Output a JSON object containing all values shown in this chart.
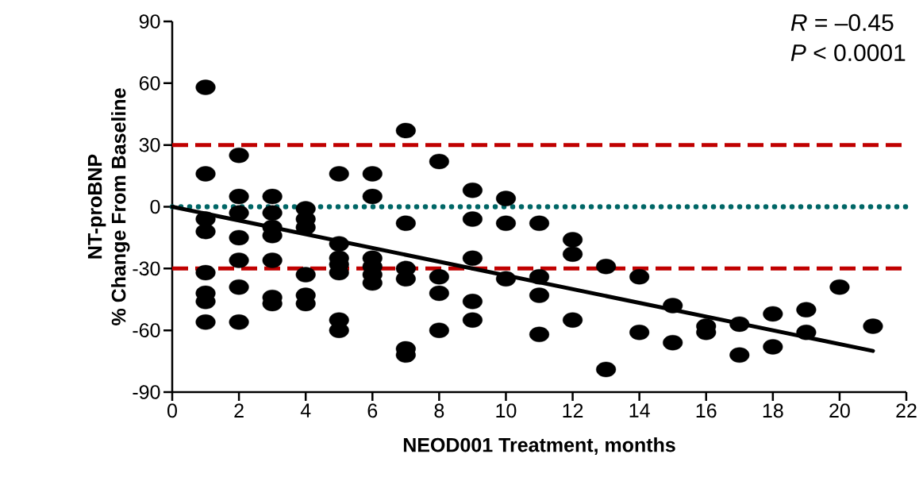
{
  "chart_data": {
    "type": "scatter",
    "xlabel": "NEOD001 Treatment, months",
    "ylabel": "NT-proBNP % Change From Baseline",
    "annotations": [
      "*R* = –0.45",
      "*P* < 0.0001"
    ],
    "xlim": [
      0,
      22
    ],
    "ylim": [
      -90,
      90
    ],
    "xticks": [
      0,
      2,
      4,
      6,
      8,
      10,
      12,
      14,
      16,
      18,
      20,
      22
    ],
    "yticks": [
      -90,
      -60,
      -30,
      0,
      30,
      60,
      90
    ],
    "marker": "circle",
    "series": [
      {
        "color": "#000000",
        "x": [
          1,
          1,
          1,
          1,
          1,
          1,
          1,
          1,
          2,
          2,
          2,
          2,
          2,
          2,
          2,
          3,
          3,
          3,
          3,
          3,
          3,
          3,
          4,
          4,
          4,
          4,
          4,
          4,
          5,
          5,
          5,
          5,
          5,
          5,
          5,
          6,
          6,
          6,
          6,
          6,
          6,
          7,
          7,
          7,
          7,
          7,
          7,
          8,
          8,
          8,
          8,
          9,
          9,
          9,
          9,
          9,
          10,
          10,
          10,
          11,
          11,
          11,
          11,
          12,
          12,
          12,
          13,
          13,
          14,
          14,
          15,
          15,
          16,
          16,
          17,
          17,
          18,
          18,
          19,
          19,
          20,
          21
        ],
        "values": [
          58,
          16,
          -6,
          -12,
          -32,
          -42,
          -46,
          -56,
          25,
          5,
          -3,
          -15,
          -26,
          -39,
          -56,
          5,
          -3,
          -10,
          -14,
          -26,
          -44,
          -47,
          -1,
          -6,
          -10,
          -33,
          -43,
          -47,
          16,
          -18,
          -25,
          -28,
          -32,
          -55,
          -60,
          16,
          5,
          -25,
          -29,
          -33,
          -37,
          37,
          -8,
          -30,
          -35,
          -69,
          -72,
          22,
          -34,
          -42,
          -60,
          8,
          -6,
          -25,
          -46,
          -55,
          4,
          -8,
          -35,
          -8,
          -34,
          -43,
          -62,
          -16,
          -23,
          -55,
          -29,
          -79,
          -34,
          -61,
          -48,
          -66,
          -58,
          -61,
          -57,
          -72,
          -52,
          -68,
          -50,
          -61,
          -39,
          -58
        ]
      },
      {
        "type": "line",
        "color": "#000000",
        "marker": "none",
        "line_style": "solid",
        "x": [
          0,
          21
        ],
        "values": [
          0,
          -70
        ]
      }
    ],
    "ref_lines": [
      {
        "axis": "y",
        "value": 30,
        "color": "#c00000",
        "line_style": "dashed"
      },
      {
        "axis": "y",
        "value": 0,
        "color": "#006666",
        "line_style": "dotted"
      },
      {
        "axis": "y",
        "value": -30,
        "color": "#c00000",
        "line_style": "dashed"
      }
    ]
  }
}
